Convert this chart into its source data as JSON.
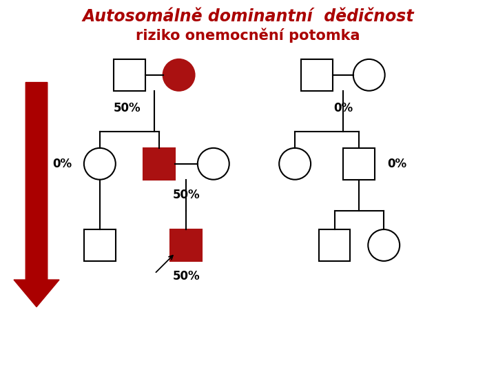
{
  "title_line1": "Autosomálně dominantní  dědičnost",
  "title_line2": "riziko onemocnění potomka",
  "title_color": "#AA0000",
  "bg_color": "#FFFFFF",
  "dark_red": "#AA1111",
  "line_color": "#000000",
  "arrow_color": "#AA0000",
  "labels": {
    "fam1_parent": "50%",
    "fam1_child_left": "0%",
    "fam1_child_mid": "50%",
    "fam1_grandchild": "50%",
    "fam2_parent": "0%",
    "fam2_child_right": "0%"
  }
}
